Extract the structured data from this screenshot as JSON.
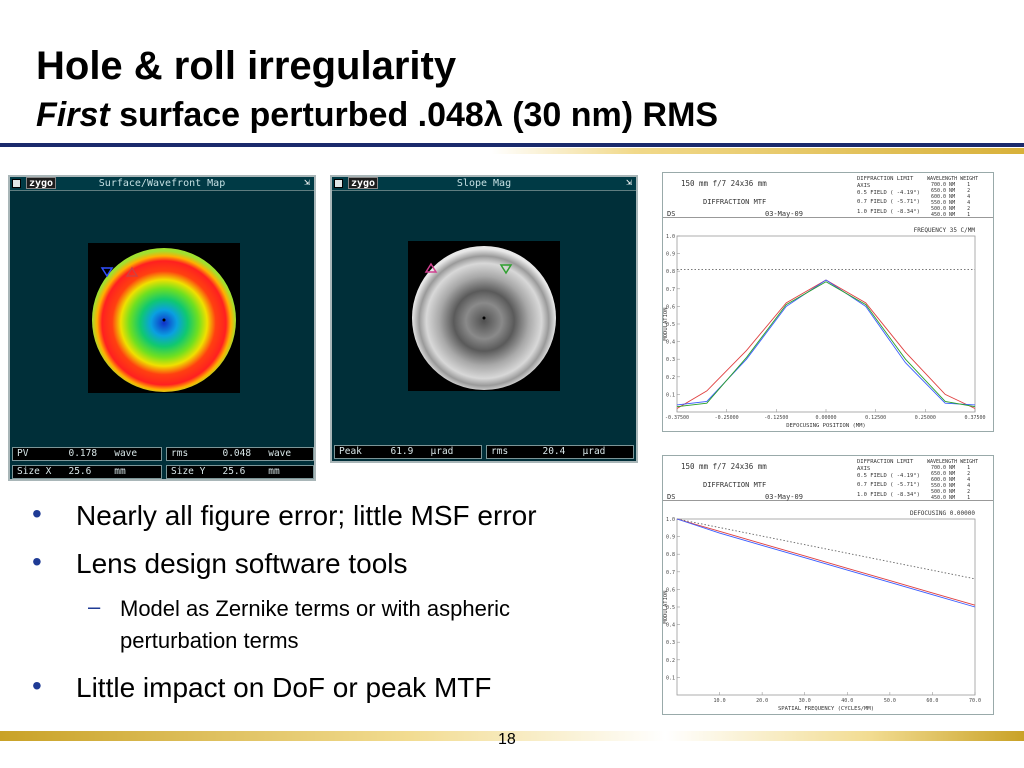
{
  "slide": {
    "title": "Hole & roll irregularity",
    "subtitle_italic": "First",
    "subtitle_rest": " surface perturbed .048λ (30 nm) RMS",
    "page_number": "18"
  },
  "panel_left": {
    "logo": "zygo",
    "title": "Surface/Wavefront Map",
    "arrow": "⇲",
    "readouts": [
      [
        "PV       0.178   wave",
        "rms      0.048   wave"
      ],
      [
        "Size X   25.6    mm",
        "Size Y   25.6    mm"
      ]
    ]
  },
  "panel_right": {
    "logo": "zygo",
    "title": "Slope Mag",
    "arrow": "⇲",
    "readouts": [
      [
        "Peak     61.9   µrad",
        "rms      20.4   µrad"
      ]
    ]
  },
  "bullets": [
    {
      "level": 1,
      "text": "Nearly all figure error; little MSF error"
    },
    {
      "level": 1,
      "text": "Lens design software tools"
    },
    {
      "level": 2,
      "lines": [
        "Model as Zernike terms or with aspheric",
        "perturbation terms"
      ]
    },
    {
      "level": 1,
      "text": "Little impact on DoF or peak MTF"
    }
  ],
  "mtf_header": {
    "lens": "150 mm f/7 24x36 mm",
    "kind": "DIFFRACTION MTF",
    "left_code": "DS",
    "date": "03-May-09",
    "legend": [
      "DIFFRACTION LIMIT",
      "AXIS",
      "0.5 FIELD ( -4.19°)",
      "0.7 FIELD ( -5.71°)",
      "1.0 FIELD ( -8.34°)"
    ],
    "wl_head": "WAVELENGTH  WEIGHT",
    "wavelengths": [
      [
        "700.0 NM",
        "1"
      ],
      [
        "650.0 NM",
        "2"
      ],
      [
        "600.0 NM",
        "4"
      ],
      [
        "550.0 NM",
        "4"
      ],
      [
        "500.0 NM",
        "2"
      ],
      [
        "450.0 NM",
        "1"
      ]
    ]
  },
  "chart_data": [
    {
      "type": "line",
      "title": "FREQUENCY  35 C/MM",
      "xlabel": "DEFOCUSING POSITION (MM)",
      "ylabel": "MODULATION",
      "xlim": [
        -0.375,
        0.375
      ],
      "ylim": [
        0,
        1
      ],
      "x_ticks": [
        "-0.37500",
        "-0.25000",
        "-0.12500",
        "0.00000",
        "0.12500",
        "0.25000",
        "0.37500"
      ],
      "y_ticks": [
        "0.1",
        "0.2",
        "0.3",
        "0.4",
        "0.5",
        "0.6",
        "0.7",
        "0.8",
        "0.9",
        "1.0"
      ],
      "series": [
        {
          "name": "DIFFRACTION LIMIT",
          "color": "#666666",
          "dash": true,
          "x": [
            -0.375,
            0.375
          ],
          "y": [
            0.81,
            0.81
          ]
        },
        {
          "name": "AXIS",
          "color": "#e04040",
          "x": [
            -0.375,
            -0.3,
            -0.2,
            -0.1,
            0,
            0.1,
            0.2,
            0.3,
            0.375
          ],
          "y": [
            0.02,
            0.12,
            0.35,
            0.62,
            0.75,
            0.62,
            0.34,
            0.1,
            0.02
          ]
        },
        {
          "name": "0.5 FIELD ( -4.19°)",
          "color": "#3a5cff",
          "x": [
            -0.375,
            -0.3,
            -0.2,
            -0.1,
            0,
            0.1,
            0.2,
            0.3,
            0.375
          ],
          "y": [
            0.04,
            0.06,
            0.3,
            0.6,
            0.75,
            0.6,
            0.28,
            0.05,
            0.04
          ]
        },
        {
          "name": "0.7 FIELD ( -5.71°)",
          "color": "#2aa02a",
          "x": [
            -0.375,
            -0.3,
            -0.2,
            -0.1,
            0,
            0.1,
            0.2,
            0.3,
            0.375
          ],
          "y": [
            0.03,
            0.05,
            0.31,
            0.61,
            0.74,
            0.61,
            0.3,
            0.06,
            0.03
          ]
        }
      ]
    },
    {
      "type": "line",
      "title": "DEFOCUSING 0.00000",
      "xlabel": "SPATIAL FREQUENCY (CYCLES/MM)",
      "ylabel": "MODULATION",
      "xlim": [
        0,
        70
      ],
      "ylim": [
        0,
        1
      ],
      "x_ticks": [
        "10.0",
        "20.0",
        "30.0",
        "40.0",
        "50.0",
        "60.0",
        "70.0"
      ],
      "y_ticks": [
        "0.1",
        "0.2",
        "0.3",
        "0.4",
        "0.5",
        "0.6",
        "0.7",
        "0.8",
        "0.9",
        "1.0"
      ],
      "series": [
        {
          "name": "DIFFRACTION LIMIT",
          "color": "#666666",
          "dash": true,
          "x": [
            0,
            70
          ],
          "y": [
            1.0,
            0.66
          ]
        },
        {
          "name": "AXIS",
          "color": "#e04040",
          "x": [
            0,
            10,
            20,
            30,
            40,
            50,
            60,
            70
          ],
          "y": [
            1.0,
            0.93,
            0.86,
            0.79,
            0.72,
            0.65,
            0.58,
            0.51
          ]
        },
        {
          "name": "0.5 FIELD ( -4.19°)",
          "color": "#3a5cff",
          "x": [
            0,
            10,
            20,
            30,
            40,
            50,
            60,
            70
          ],
          "y": [
            1.0,
            0.92,
            0.85,
            0.78,
            0.71,
            0.64,
            0.57,
            0.5
          ]
        }
      ]
    }
  ]
}
